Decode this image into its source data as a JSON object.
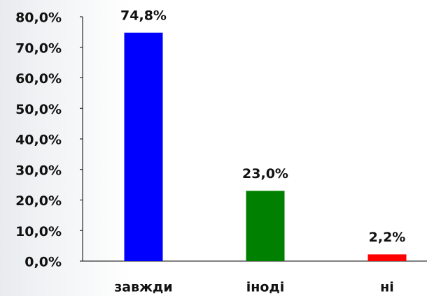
{
  "chart_data": {
    "type": "bar",
    "categories": [
      "завжди",
      "іноді",
      "ні"
    ],
    "values": [
      74.8,
      23.0,
      2.2
    ],
    "value_labels": [
      "74,8%",
      "23,0%",
      "2,2%"
    ],
    "colors": [
      "#0000ff",
      "#008000",
      "#ff0000"
    ],
    "ylim": [
      0,
      80
    ],
    "yticks": [
      {
        "value": 0,
        "label": "0,0%"
      },
      {
        "value": 10,
        "label": "10,0%"
      },
      {
        "value": 20,
        "label": "20,0%"
      },
      {
        "value": 30,
        "label": "30,0%"
      },
      {
        "value": 40,
        "label": "40,0%"
      },
      {
        "value": 50,
        "label": "50,0%"
      },
      {
        "value": 60,
        "label": "60,0%"
      },
      {
        "value": 70,
        "label": "70,0%"
      },
      {
        "value": 80,
        "label": "80,0%"
      }
    ],
    "grid": false
  }
}
